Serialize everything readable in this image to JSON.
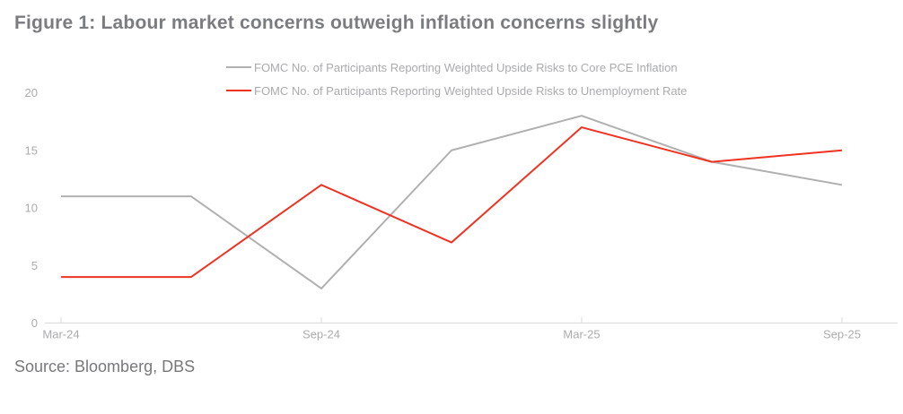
{
  "page": {
    "title": "Figure 1: Labour market concerns outweigh inflation concerns slightly",
    "source": "Source: Bloomberg, DBS"
  },
  "colors": {
    "background": "#ffffff",
    "title_text": "#7b7c7f",
    "axis_text": "#a9abae",
    "legend_text": "#a9abae",
    "axis_line": "#d9d9d9",
    "inflation_line": "#b0b0b0",
    "unemployment_line": "#f03222"
  },
  "chart_data": {
    "type": "line",
    "x": [
      "Mar-24",
      "Jun-24",
      "Sep-24",
      "Dec-24",
      "Mar-25",
      "Jun-25",
      "Sep-25"
    ],
    "x_axis_tick_labels": [
      "Mar-24",
      "Sep-24",
      "Mar-25",
      "Sep-25"
    ],
    "x_axis_tick_indices": [
      0,
      2,
      4,
      6
    ],
    "y_ticks": [
      0,
      5,
      10,
      15,
      20
    ],
    "ylim": [
      0,
      20
    ],
    "grid": false,
    "legend_position": "top-center",
    "series": [
      {
        "name": "FOMC No. of Participants Reporting Weighted Upside Risks to Core PCE Inflation",
        "color": "#b0b0b0",
        "values": [
          11,
          11,
          3,
          15,
          18,
          14,
          12
        ]
      },
      {
        "name": "FOMC No. of Participants Reporting Weighted Upside Risks to Unemployment Rate",
        "color": "#f03222",
        "values": [
          4,
          4,
          12,
          7,
          17,
          14,
          15
        ]
      }
    ]
  }
}
